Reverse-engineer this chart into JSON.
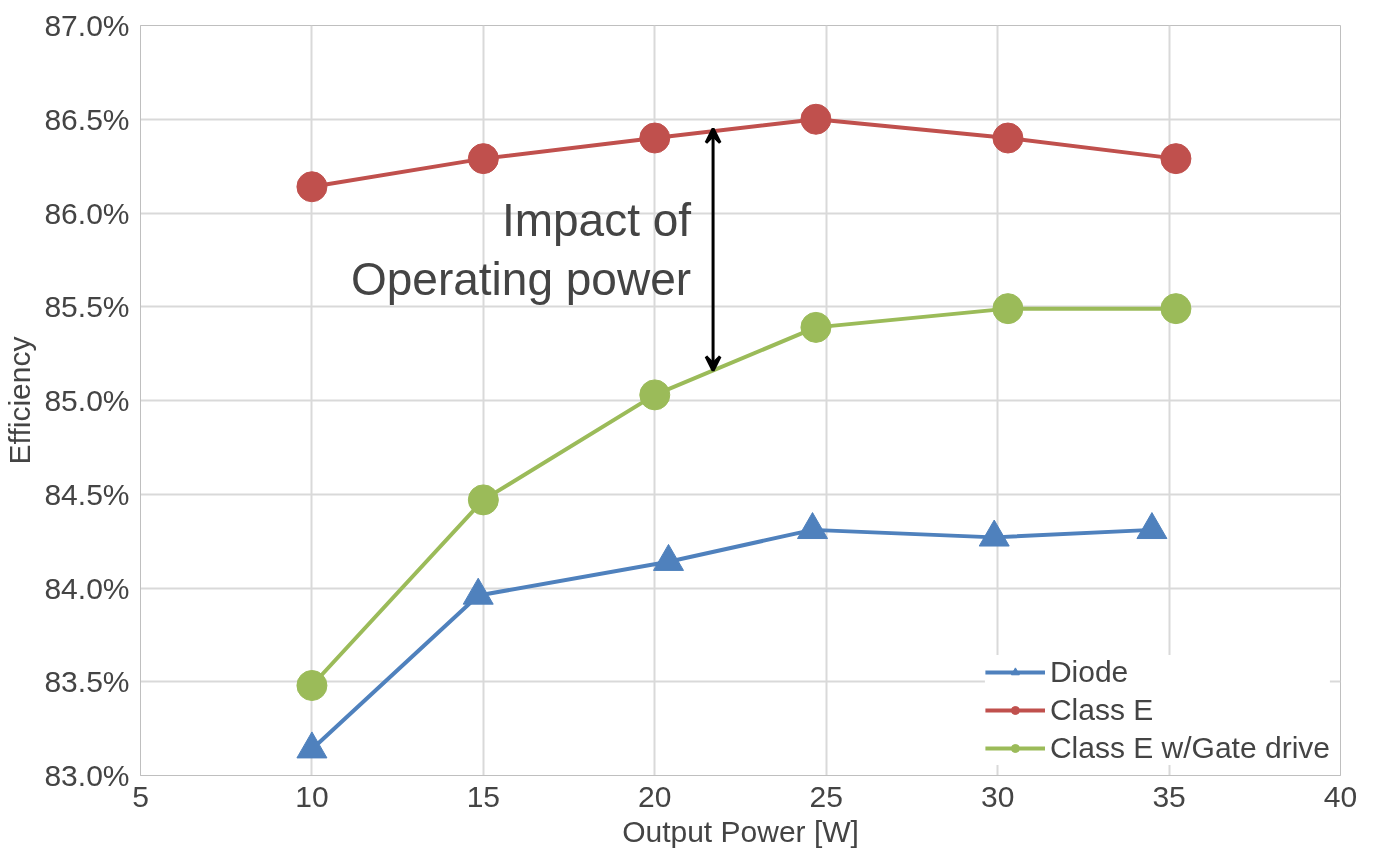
{
  "chart_data": {
    "type": "line",
    "xlabel": "Output Power [W]",
    "ylabel": "Efficiency",
    "xlim": [
      5,
      40
    ],
    "xticks": [
      5,
      10,
      15,
      20,
      25,
      30,
      35,
      40
    ],
    "ylim": [
      83.0,
      87.0
    ],
    "yticks": [
      {
        "value": 83.0,
        "label": "83.0%"
      },
      {
        "value": 83.5,
        "label": "83.5%"
      },
      {
        "value": 84.0,
        "label": "84.0%"
      },
      {
        "value": 84.5,
        "label": "84.5%"
      },
      {
        "value": 85.0,
        "label": "85.0%"
      },
      {
        "value": 85.5,
        "label": "85.5%"
      },
      {
        "value": 86.0,
        "label": "86.0%"
      },
      {
        "value": 86.5,
        "label": "86.5%"
      },
      {
        "value": 87.0,
        "label": "87.0%"
      }
    ],
    "grid": true,
    "legend": "bottom right",
    "line_style": "solid",
    "annotations": [
      {
        "text": "Impact of\nOperating power",
        "x": 21.7,
        "y": 86.45
      }
    ],
    "series": [
      {
        "name": "Diode",
        "color": "#4f81bd",
        "marker": "triangle",
        "x": [
          10,
          14.85,
          20.4,
          24.6,
          29.9,
          34.5
        ],
        "values": [
          83.14,
          83.96,
          84.14,
          84.31,
          84.27,
          84.31
        ]
      },
      {
        "name": "Class E",
        "color": "#c0504d",
        "marker": "circle",
        "x": [
          10,
          15,
          20,
          24.7,
          30.3,
          35.2
        ],
        "values": [
          86.14,
          86.29,
          86.4,
          86.5,
          86.4,
          86.29
        ]
      },
      {
        "name": "Class E w/Gate drive",
        "color": "#9bbb59",
        "marker": "circle",
        "x": [
          10,
          15,
          20,
          24.7,
          30.3,
          35.2
        ],
        "values": [
          83.48,
          84.47,
          85.03,
          85.39,
          85.49,
          85.49
        ]
      }
    ]
  }
}
